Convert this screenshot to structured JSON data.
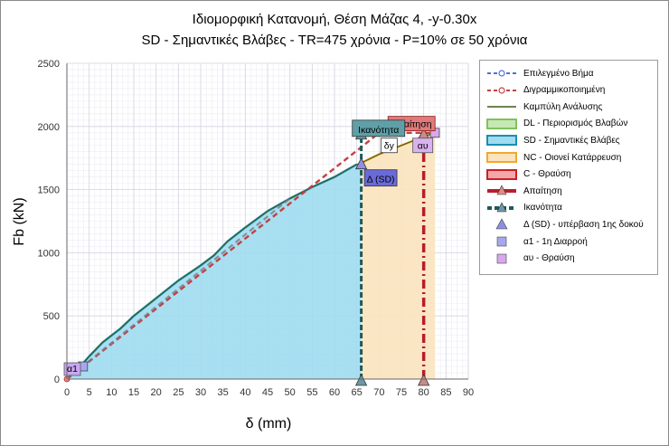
{
  "title": {
    "line1": "Ιδιομορφική Κατανομή, Θέση Μάζας 4, -y-0.30x",
    "line2": "SD - Σημαντικές Βλάβες - TR=475 χρόνια - P=10% σε 50 χρόνια"
  },
  "chart_data": {
    "type": "line",
    "xlabel": "δ (mm)",
    "ylabel": "Fb (kN)",
    "xlim": [
      0,
      90
    ],
    "ylim": [
      0,
      2500
    ],
    "xticks": [
      0,
      5,
      10,
      15,
      20,
      25,
      30,
      35,
      40,
      45,
      50,
      55,
      60,
      65,
      70,
      75,
      80,
      85,
      90
    ],
    "yticks": [
      0,
      500,
      1000,
      1500,
      2000,
      2500
    ],
    "grid": true,
    "legend_position": "right",
    "capacity_curve": {
      "name": "Καμπύλη Ανάλυσης",
      "x": [
        0,
        3,
        5,
        8,
        12,
        15,
        20,
        25,
        30,
        33,
        36,
        40,
        45,
        50,
        55,
        60,
        65,
        66.5,
        70,
        75,
        80,
        82.5
      ],
      "y": [
        0,
        100,
        180,
        290,
        400,
        500,
        640,
        780,
        900,
        980,
        1090,
        1200,
        1330,
        1430,
        1520,
        1600,
        1700,
        1720,
        1780,
        1850,
        1920,
        1950
      ]
    },
    "bilinear": {
      "name": "Διγραμμικοποιημένη",
      "x": [
        0,
        66.5,
        70,
        82.5
      ],
      "y": [
        0,
        1850,
        1950,
        1950
      ]
    },
    "selected_step": {
      "name": "Επιλεγμένο Βήμα",
      "x": [
        0,
        3
      ],
      "y": [
        0,
        100
      ]
    },
    "zones": [
      {
        "name": "DL - Περιορισμός Βλαβών",
        "from": 0,
        "to": 0,
        "color": "#c6e9b3",
        "border": "#7fc25e"
      },
      {
        "name": "SD - Σημαντικές Βλάβες",
        "from": 0,
        "to": 66,
        "color": "#9fdcf0",
        "border": "#1a8fb0"
      },
      {
        "name": "NC - Οιονεί Κατάρρευση",
        "from": 66,
        "to": 82.5,
        "color": "#fbe3be",
        "border": "#f0a830"
      },
      {
        "name": "C - Θραύση",
        "from": 82.5,
        "to": 82.5,
        "color": "#f4a7a7",
        "border": "#c8202a"
      }
    ],
    "demand": {
      "name": "Απαίτηση",
      "x": 80,
      "label": "Απαίτηση"
    },
    "capacity": {
      "name": "Ικανότητα",
      "x": 66,
      "label": "Ικανότητα"
    },
    "markers": [
      {
        "name": "Δ (SD) - υπέρβαση 1ης δοκού",
        "x": 66,
        "y": 1700,
        "label": "Δ (SD)"
      },
      {
        "name": "α1 - 1η Διαρροή",
        "x": 3,
        "y": 100,
        "label": "α1"
      },
      {
        "name": "αυ - Θραύση",
        "x": 82.5,
        "y": 1950,
        "label": "αυ"
      }
    ],
    "annotations": [
      {
        "label": "δy",
        "x": 70,
        "y": 1850
      },
      {
        "label": "α1",
        "x": 0,
        "y": 0
      },
      {
        "label": "αυ",
        "x": 80,
        "y": 1850
      }
    ]
  },
  "legend": {
    "items": [
      "Επιλεγμένο Βήμα",
      "Διγραμμικοποιημένη",
      "Καμπύλη Ανάλυσης",
      "DL - Περιορισμός Βλαβών",
      "SD - Σημαντικές Βλάβες",
      "NC - Οιονεί Κατάρρευση",
      "C - Θραύση",
      "Απαίτηση",
      "Ικανότητα",
      "Δ (SD) - υπέρβαση 1ης δοκού",
      "α1 - 1η Διαρροή",
      "αυ - Θραύση"
    ]
  },
  "colors": {
    "selected": "#4a6fd8",
    "bilinear": "#c44040",
    "curve": "#3c5a1c",
    "sd_line": "#1a8fb0",
    "nc_line": "#f0a830",
    "demand": "#b81e2a",
    "capacity": "#1e5a5a",
    "marker_delta": "#8f8fe0",
    "marker_a1": "#a7a7f0",
    "marker_au": "#d9a7f0"
  }
}
